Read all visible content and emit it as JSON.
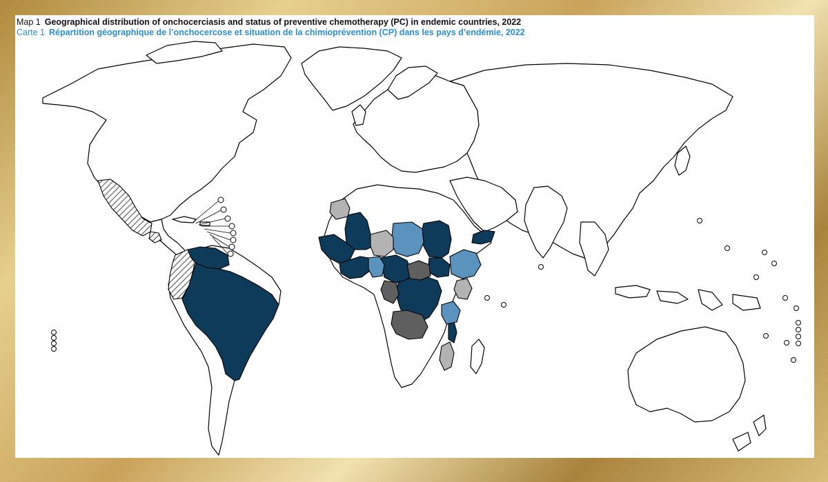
{
  "title": {
    "en_label": "Map 1",
    "en_text": "Geographical distribution of onchocerciasis and status of preventive chemotherapy (PC) in endemic countries, 2022",
    "fr_label": "Carte 1",
    "fr_text": "Répartition géographique de l’onchocercose et situation de la chimioprévention (CP) dans les pays d’endémie, 2022"
  },
  "colors": {
    "pc_high": "#0f3b5a",
    "pc_medium": "#5a93be",
    "pc_low": "#b3b3b3",
    "pc_none": "#5f5f5f",
    "hatched": "#9a9a9a",
    "outline": "#000000",
    "frame": "#c9a35a"
  }
}
